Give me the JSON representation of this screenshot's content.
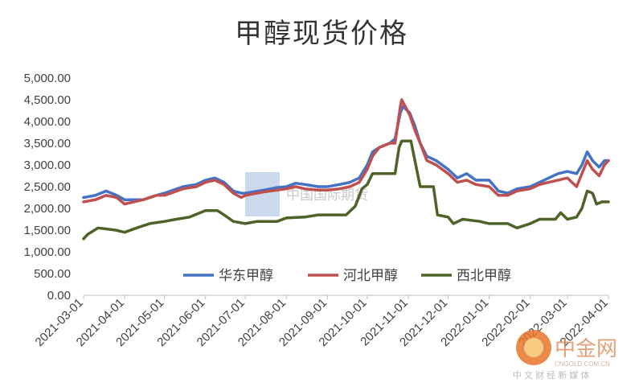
{
  "chart_data": {
    "type": "line",
    "title": "甲醇现货价格",
    "xlabel": "",
    "ylabel": "",
    "ylim": [
      0,
      5000
    ],
    "yticks": [
      "0.00",
      "500.00",
      "1,000.00",
      "1,500.00",
      "2,000.00",
      "2,500.00",
      "3,000.00",
      "3,500.00",
      "4,000.00",
      "4,500.00",
      "5,000.00"
    ],
    "xlim": [
      "2021-03-01",
      "2022-04-01"
    ],
    "xticks": [
      "2021-03-01",
      "2021-04-01",
      "2021-05-01",
      "2021-06-01",
      "2021-07-01",
      "2021-08-01",
      "2021-09-01",
      "2021-10-01",
      "2021-11-01",
      "2021-12-01",
      "2022-01-01",
      "2022-02-01",
      "2022-03-01",
      "2022-04-01"
    ],
    "legend_position": "bottom-center",
    "grid": false,
    "series": [
      {
        "name": "华东甲醇",
        "color": "#4472c4",
        "points": [
          [
            "2021-03-01",
            2250
          ],
          [
            "2021-03-10",
            2300
          ],
          [
            "2021-03-18",
            2400
          ],
          [
            "2021-03-26",
            2300
          ],
          [
            "2021-04-01",
            2200
          ],
          [
            "2021-04-15",
            2200
          ],
          [
            "2021-04-25",
            2300
          ],
          [
            "2021-05-01",
            2350
          ],
          [
            "2021-05-15",
            2500
          ],
          [
            "2021-05-25",
            2550
          ],
          [
            "2021-06-01",
            2650
          ],
          [
            "2021-06-08",
            2700
          ],
          [
            "2021-06-15",
            2600
          ],
          [
            "2021-06-22",
            2400
          ],
          [
            "2021-06-28",
            2350
          ],
          [
            "2021-07-01",
            2350
          ],
          [
            "2021-07-15",
            2420
          ],
          [
            "2021-07-25",
            2480
          ],
          [
            "2021-08-01",
            2500
          ],
          [
            "2021-08-08",
            2580
          ],
          [
            "2021-08-15",
            2550
          ],
          [
            "2021-08-25",
            2500
          ],
          [
            "2021-09-01",
            2500
          ],
          [
            "2021-09-10",
            2550
          ],
          [
            "2021-09-18",
            2600
          ],
          [
            "2021-09-25",
            2700
          ],
          [
            "2021-10-01",
            3000
          ],
          [
            "2021-10-05",
            3300
          ],
          [
            "2021-10-10",
            3400
          ],
          [
            "2021-10-18",
            3500
          ],
          [
            "2021-10-22",
            3600
          ],
          [
            "2021-10-26",
            4200
          ],
          [
            "2021-10-28",
            4350
          ],
          [
            "2021-11-02",
            4200
          ],
          [
            "2021-11-06",
            3900
          ],
          [
            "2021-11-10",
            3500
          ],
          [
            "2021-11-15",
            3200
          ],
          [
            "2021-11-22",
            3100
          ],
          [
            "2021-12-01",
            2900
          ],
          [
            "2021-12-08",
            2700
          ],
          [
            "2021-12-15",
            2800
          ],
          [
            "2021-12-22",
            2650
          ],
          [
            "2022-01-01",
            2650
          ],
          [
            "2022-01-08",
            2400
          ],
          [
            "2022-01-15",
            2350
          ],
          [
            "2022-01-22",
            2450
          ],
          [
            "2022-02-01",
            2500
          ],
          [
            "2022-02-08",
            2600
          ],
          [
            "2022-02-15",
            2700
          ],
          [
            "2022-02-22",
            2800
          ],
          [
            "2022-03-01",
            2850
          ],
          [
            "2022-03-08",
            2800
          ],
          [
            "2022-03-12",
            3000
          ],
          [
            "2022-03-16",
            3300
          ],
          [
            "2022-03-20",
            3100
          ],
          [
            "2022-03-25",
            2950
          ],
          [
            "2022-03-29",
            3100
          ],
          [
            "2022-04-01",
            3100
          ]
        ]
      },
      {
        "name": "河北甲醇",
        "color": "#c0504d",
        "points": [
          [
            "2021-03-01",
            2150
          ],
          [
            "2021-03-10",
            2200
          ],
          [
            "2021-03-18",
            2300
          ],
          [
            "2021-03-26",
            2250
          ],
          [
            "2021-04-01",
            2100
          ],
          [
            "2021-04-15",
            2200
          ],
          [
            "2021-04-25",
            2300
          ],
          [
            "2021-05-01",
            2300
          ],
          [
            "2021-05-15",
            2450
          ],
          [
            "2021-05-25",
            2500
          ],
          [
            "2021-06-01",
            2600
          ],
          [
            "2021-06-08",
            2650
          ],
          [
            "2021-06-15",
            2550
          ],
          [
            "2021-06-22",
            2350
          ],
          [
            "2021-06-28",
            2250
          ],
          [
            "2021-07-01",
            2300
          ],
          [
            "2021-07-15",
            2380
          ],
          [
            "2021-07-25",
            2420
          ],
          [
            "2021-08-01",
            2450
          ],
          [
            "2021-08-08",
            2500
          ],
          [
            "2021-08-15",
            2450
          ],
          [
            "2021-08-25",
            2420
          ],
          [
            "2021-09-01",
            2420
          ],
          [
            "2021-09-10",
            2450
          ],
          [
            "2021-09-18",
            2500
          ],
          [
            "2021-09-25",
            2600
          ],
          [
            "2021-10-01",
            2900
          ],
          [
            "2021-10-05",
            3200
          ],
          [
            "2021-10-10",
            3400
          ],
          [
            "2021-10-18",
            3500
          ],
          [
            "2021-10-22",
            3500
          ],
          [
            "2021-10-26",
            4350
          ],
          [
            "2021-10-27",
            4500
          ],
          [
            "2021-11-02",
            4150
          ],
          [
            "2021-11-06",
            3800
          ],
          [
            "2021-11-10",
            3500
          ],
          [
            "2021-11-15",
            3100
          ],
          [
            "2021-11-22",
            3000
          ],
          [
            "2021-12-01",
            2800
          ],
          [
            "2021-12-08",
            2600
          ],
          [
            "2021-12-15",
            2650
          ],
          [
            "2021-12-22",
            2550
          ],
          [
            "2022-01-01",
            2500
          ],
          [
            "2022-01-08",
            2300
          ],
          [
            "2022-01-15",
            2300
          ],
          [
            "2022-01-22",
            2400
          ],
          [
            "2022-02-01",
            2450
          ],
          [
            "2022-02-08",
            2550
          ],
          [
            "2022-02-15",
            2600
          ],
          [
            "2022-02-22",
            2650
          ],
          [
            "2022-03-01",
            2700
          ],
          [
            "2022-03-08",
            2500
          ],
          [
            "2022-03-12",
            2800
          ],
          [
            "2022-03-16",
            3100
          ],
          [
            "2022-03-20",
            2900
          ],
          [
            "2022-03-25",
            2750
          ],
          [
            "2022-03-29",
            3000
          ],
          [
            "2022-04-01",
            3100
          ]
        ]
      },
      {
        "name": "西北甲醇",
        "color": "#4f6228",
        "points": [
          [
            "2021-03-01",
            1300
          ],
          [
            "2021-03-04",
            1400
          ],
          [
            "2021-03-12",
            1550
          ],
          [
            "2021-03-25",
            1500
          ],
          [
            "2021-04-01",
            1450
          ],
          [
            "2021-04-10",
            1550
          ],
          [
            "2021-04-20",
            1650
          ],
          [
            "2021-05-01",
            1700
          ],
          [
            "2021-05-10",
            1750
          ],
          [
            "2021-05-20",
            1800
          ],
          [
            "2021-06-01",
            1950
          ],
          [
            "2021-06-10",
            1950
          ],
          [
            "2021-06-15",
            1850
          ],
          [
            "2021-06-22",
            1700
          ],
          [
            "2021-07-01",
            1650
          ],
          [
            "2021-07-10",
            1700
          ],
          [
            "2021-07-25",
            1700
          ],
          [
            "2021-08-01",
            1780
          ],
          [
            "2021-08-15",
            1800
          ],
          [
            "2021-08-25",
            1850
          ],
          [
            "2021-09-01",
            1850
          ],
          [
            "2021-09-15",
            1850
          ],
          [
            "2021-09-22",
            2050
          ],
          [
            "2021-09-27",
            2450
          ],
          [
            "2021-10-01",
            2550
          ],
          [
            "2021-10-05",
            2800
          ],
          [
            "2021-10-15",
            2800
          ],
          [
            "2021-10-22",
            2800
          ],
          [
            "2021-10-25",
            3400
          ],
          [
            "2021-10-27",
            3550
          ],
          [
            "2021-11-03",
            3550
          ],
          [
            "2021-11-06",
            3100
          ],
          [
            "2021-11-10",
            2500
          ],
          [
            "2021-11-20",
            2500
          ],
          [
            "2021-11-23",
            1850
          ],
          [
            "2021-12-01",
            1800
          ],
          [
            "2021-12-05",
            1650
          ],
          [
            "2021-12-12",
            1750
          ],
          [
            "2021-12-25",
            1700
          ],
          [
            "2022-01-01",
            1650
          ],
          [
            "2022-01-15",
            1650
          ],
          [
            "2022-01-22",
            1550
          ],
          [
            "2022-02-01",
            1650
          ],
          [
            "2022-02-08",
            1750
          ],
          [
            "2022-02-20",
            1750
          ],
          [
            "2022-02-24",
            1900
          ],
          [
            "2022-03-01",
            1750
          ],
          [
            "2022-03-08",
            1800
          ],
          [
            "2022-03-12",
            2000
          ],
          [
            "2022-03-16",
            2400
          ],
          [
            "2022-03-20",
            2350
          ],
          [
            "2022-03-23",
            2100
          ],
          [
            "2022-03-27",
            2150
          ],
          [
            "2022-04-01",
            2150
          ]
        ]
      }
    ]
  },
  "watermarks": {
    "center_text": "中国国际期货",
    "corner_text": "中金网",
    "corner_subtext": "中 文 财 经 新 媒 体",
    "corner_url": "CNGOLD.COM.CN"
  }
}
